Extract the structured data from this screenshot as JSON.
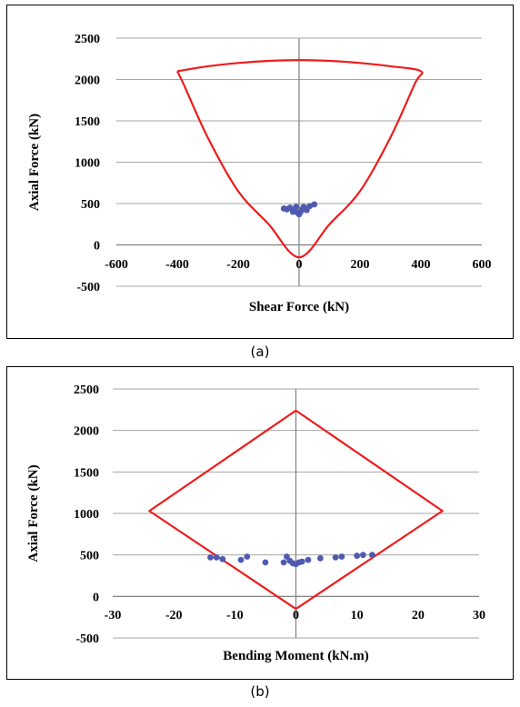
{
  "captions": {
    "a": "(a)",
    "b": "(b)"
  },
  "colors": {
    "envelope": "#ee1c1c",
    "points": "#4f5bb0",
    "grid": "#a6a6a6",
    "axis": "#7f7f7f"
  },
  "chart_data": [
    {
      "id": "a",
      "type": "scatter",
      "title": "",
      "xlabel": "Shear Force (kN)",
      "ylabel": "Axial Force (kN)",
      "xlim": [
        -600,
        600
      ],
      "ylim": [
        -500,
        2500
      ],
      "xticks": [
        -600,
        -400,
        -200,
        0,
        200,
        400,
        600
      ],
      "yticks": [
        -500,
        0,
        500,
        1000,
        1500,
        2000,
        2500
      ],
      "grid": "horizontal",
      "envelope": {
        "name": "",
        "closed": true,
        "x": [
          -400,
          -380,
          -300,
          -200,
          -100,
          0,
          100,
          200,
          300,
          380,
          400,
          300,
          200,
          100,
          0,
          -100,
          -200,
          -300,
          -400
        ],
        "y": [
          2100,
          1950,
          1300,
          650,
          250,
          -150,
          250,
          650,
          1300,
          1950,
          2100,
          2160,
          2200,
          2225,
          2235,
          2225,
          2200,
          2160,
          2100
        ]
      },
      "points": {
        "x": [
          -50,
          -40,
          -30,
          -20,
          -15,
          -10,
          -5,
          0,
          5,
          10,
          15,
          25,
          35,
          50
        ],
        "y": [
          440,
          430,
          450,
          400,
          420,
          460,
          390,
          370,
          400,
          430,
          460,
          420,
          470,
          490
        ]
      }
    },
    {
      "id": "b",
      "type": "scatter",
      "title": "",
      "xlabel": "Bending Moment (kN.m)",
      "ylabel": "Axial Force (kN)",
      "xlim": [
        -30,
        30
      ],
      "ylim": [
        -500,
        2500
      ],
      "xticks": [
        -30,
        -20,
        -10,
        0,
        10,
        20,
        30
      ],
      "yticks": [
        -500,
        0,
        500,
        1000,
        1500,
        2000,
        2500
      ],
      "grid": "horizontal",
      "envelope": {
        "name": "",
        "closed": true,
        "x": [
          0,
          24,
          0,
          -24,
          0
        ],
        "y": [
          2240,
          1030,
          -150,
          1030,
          2240
        ]
      },
      "points": {
        "x": [
          -14,
          -13,
          -12,
          -9,
          -8,
          -5,
          -2,
          -1.5,
          -1,
          -0.5,
          0,
          0.5,
          1,
          2,
          4,
          6.5,
          7.5,
          10,
          11,
          12.5
        ],
        "y": [
          470,
          470,
          450,
          440,
          480,
          410,
          410,
          480,
          430,
          400,
          390,
          410,
          420,
          440,
          460,
          470,
          480,
          490,
          500,
          500
        ]
      }
    }
  ]
}
